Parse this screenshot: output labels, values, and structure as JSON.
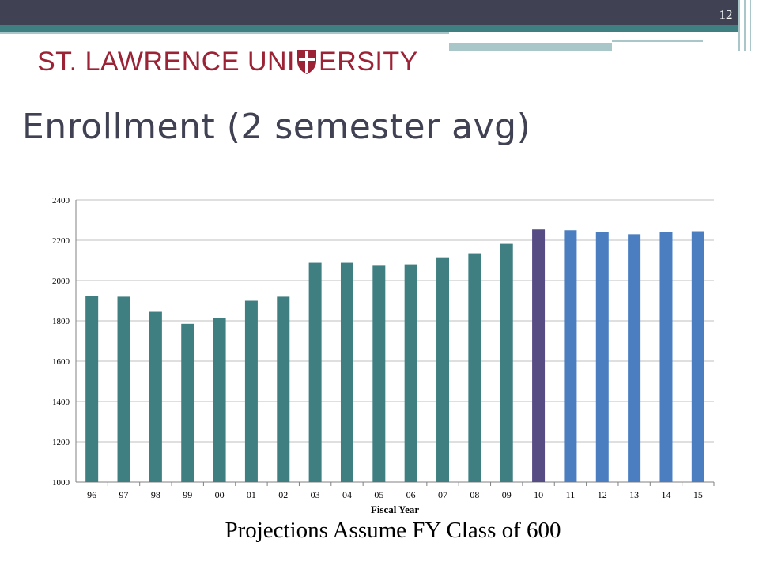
{
  "slide": {
    "page_number": "12",
    "logo_text_left": "ST. LAWRENCE UNI",
    "logo_text_right": "ERSITY",
    "logo_emblem": "shield-icon",
    "title": "Enrollment (2 semester avg)",
    "note": "Projections Assume FY Class of 600"
  },
  "colors": {
    "header_dark": "#404254",
    "header_teal": "#3f7f82",
    "logo_red": "#9b2335",
    "bar_actual": "#3f7f82",
    "bar_current": "#574c84",
    "bar_projected": "#4a7ec0"
  },
  "chart_data": {
    "type": "bar",
    "title": "",
    "xlabel": "Fiscal Year",
    "ylabel": "",
    "ylim": [
      1000,
      2400
    ],
    "yticks": [
      1000,
      1200,
      1400,
      1600,
      1800,
      2000,
      2200,
      2400
    ],
    "grid": true,
    "legend": "none",
    "categories": [
      "96",
      "97",
      "98",
      "99",
      "00",
      "01",
      "02",
      "03",
      "04",
      "05",
      "06",
      "07",
      "08",
      "09",
      "10",
      "11",
      "12",
      "13",
      "14",
      "15"
    ],
    "values": [
      1925,
      1920,
      1845,
      1785,
      1812,
      1900,
      1920,
      2088,
      2088,
      2077,
      2080,
      2115,
      2135,
      2182,
      2254,
      2250,
      2240,
      2230,
      2240,
      2245
    ],
    "bar_groups": [
      "actual",
      "actual",
      "actual",
      "actual",
      "actual",
      "actual",
      "actual",
      "actual",
      "actual",
      "actual",
      "actual",
      "actual",
      "actual",
      "actual",
      "current",
      "projected",
      "projected",
      "projected",
      "projected",
      "projected"
    ]
  }
}
